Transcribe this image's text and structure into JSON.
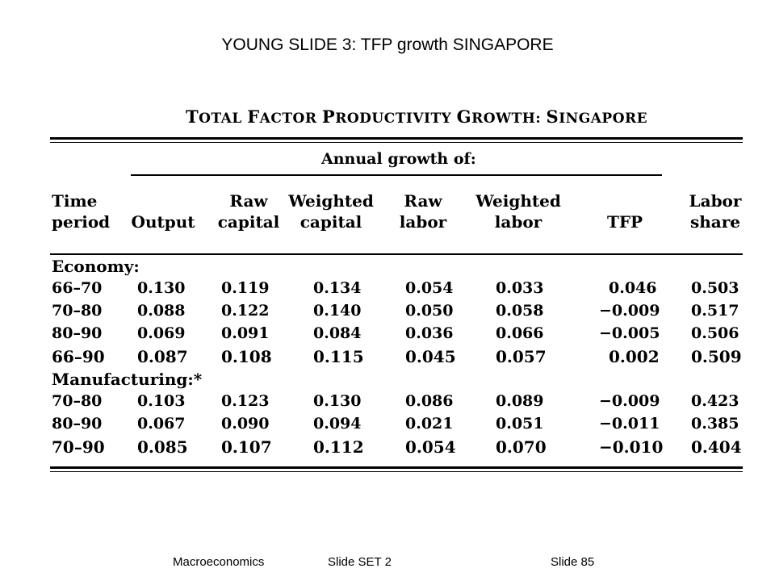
{
  "slide": {
    "title": "YOUNG SLIDE 3: TFP growth SINGAPORE"
  },
  "table": {
    "title_parts": [
      {
        "t": "T",
        "big": true
      },
      {
        "t": "OTAL ",
        "big": false
      },
      {
        "t": "F",
        "big": true
      },
      {
        "t": "ACTOR ",
        "big": false
      },
      {
        "t": "P",
        "big": true
      },
      {
        "t": "RODUCTIVITY ",
        "big": false
      },
      {
        "t": "G",
        "big": true
      },
      {
        "t": "ROWTH: ",
        "big": false
      },
      {
        "t": "S",
        "big": true
      },
      {
        "t": "INGAPORE",
        "big": false
      }
    ],
    "column_group": "Annual growth of:",
    "headers": [
      [
        "Time",
        "period"
      ],
      [
        "Output"
      ],
      [
        "Raw",
        "capital"
      ],
      [
        "Weighted",
        "capital"
      ],
      [
        "Raw",
        "labor"
      ],
      [
        "Weighted",
        "labor"
      ],
      [
        "TFP"
      ],
      [
        "Labor",
        "share"
      ]
    ],
    "sections": [
      {
        "label": "Economy:",
        "rows": [
          {
            "period": "66–70",
            "values": [
              "0.130",
              "0.119",
              "0.134",
              "0.054",
              "0.033",
              "0.046",
              "0.503"
            ],
            "total": false
          },
          {
            "period": "70–80",
            "values": [
              "0.088",
              "0.122",
              "0.140",
              "0.050",
              "0.058",
              "−0.009",
              "0.517"
            ],
            "total": false
          },
          {
            "period": "80–90",
            "values": [
              "0.069",
              "0.091",
              "0.084",
              "0.036",
              "0.066",
              "−0.005",
              "0.506"
            ],
            "total": false
          },
          {
            "period": "66–90",
            "values": [
              "0.087",
              "0.108",
              "0.115",
              "0.045",
              "0.057",
              "0.002",
              "0.509"
            ],
            "total": true
          }
        ]
      },
      {
        "label": "Manufacturing:*",
        "rows": [
          {
            "period": "70–80",
            "values": [
              "0.103",
              "0.123",
              "0.130",
              "0.086",
              "0.089",
              "−0.009",
              "0.423"
            ],
            "total": false
          },
          {
            "period": "80–90",
            "values": [
              "0.067",
              "0.090",
              "0.094",
              "0.021",
              "0.051",
              "−0.011",
              "0.385"
            ],
            "total": false
          },
          {
            "period": "70–90",
            "values": [
              "0.085",
              "0.107",
              "0.112",
              "0.054",
              "0.070",
              "−0.010",
              "0.404"
            ],
            "total": true
          }
        ]
      }
    ]
  },
  "footer": {
    "course": "Macroeconomics",
    "set": "Slide SET 2",
    "slide_number": "Slide 85"
  }
}
